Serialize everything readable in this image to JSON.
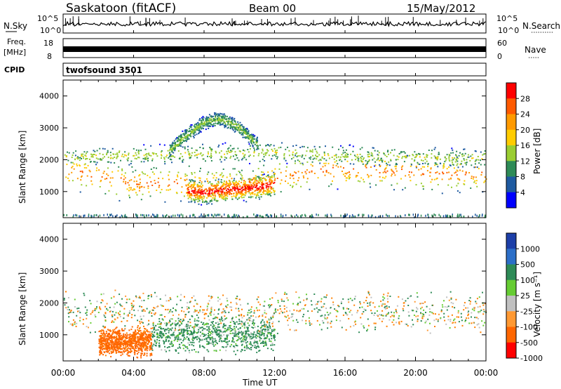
{
  "header": {
    "station": "Saskatoon (fitACF)",
    "beam": "Beam 00",
    "date": "15/May/2012"
  },
  "aux_panels": {
    "nsky_label": "N.Sky",
    "nsearch_label": "N.Search",
    "noise_ticks_left": [
      "10^5",
      "10^0"
    ],
    "noise_ticks_right": [
      "10^5",
      "10^0"
    ],
    "freq_label_1": "Freq.",
    "freq_label_2": "[MHz]",
    "freq_ticks": [
      "18",
      "8"
    ],
    "nave_label": "Nave",
    "nave_ticks": [
      "60",
      "0"
    ],
    "cpid_label": "CPID",
    "cpid_value": "twofsound 3501"
  },
  "colorbars": {
    "power": {
      "label": "Power [dB]",
      "ticks": [
        "28",
        "24",
        "20",
        "16",
        "12",
        "8",
        "4"
      ],
      "colors": [
        "#ff0000",
        "#ff5a00",
        "#ff9a00",
        "#ffcc00",
        "#9acd32",
        "#2e8b57",
        "#1e5aa0",
        "#0000ff"
      ]
    },
    "velocity": {
      "label": "Velocity [m s⁻¹]",
      "ticks": [
        "1000",
        "500",
        "100",
        "25",
        "-25",
        "-100",
        "-500",
        "-1000"
      ],
      "colors": [
        "#1d3fa8",
        "#2c6fc8",
        "#2e8b57",
        "#66cc33",
        "#c0c0c0",
        "#ff9933",
        "#ff6600",
        "#ff0000"
      ]
    }
  },
  "chart_data": [
    {
      "type": "heatmap",
      "title": "Power",
      "ylabel": "Slant Range [km]",
      "xlabel": "Time UT",
      "y_ticks": [
        "4000",
        "3000",
        "2000",
        "1000"
      ],
      "ylim": [
        180,
        4500
      ],
      "xlim": [
        0,
        24
      ],
      "x_tick_labels": [
        "00:00",
        "04:00",
        "08:00",
        "12:00",
        "16:00",
        "20:00",
        "00:00"
      ],
      "bands": [
        {
          "name": "main",
          "t": [
            0,
            2,
            4,
            6,
            8,
            10,
            12,
            14,
            16,
            18,
            20,
            22,
            24
          ],
          "r": [
            1700,
            1500,
            1250,
            1300,
            1200,
            1250,
            1400,
            1650,
            1700,
            1650,
            1600,
            1550,
            1600
          ],
          "width": 650,
          "peak": 22
        },
        {
          "name": "upper",
          "t": [
            0,
            4,
            8,
            12,
            16,
            20,
            24
          ],
          "r": [
            2100,
            2150,
            2200,
            2250,
            2150,
            2100,
            2050
          ],
          "width": 350,
          "peak": 12
        },
        {
          "name": "storm",
          "t": [
            7,
            8,
            9,
            10,
            11,
            12
          ],
          "r": [
            1050,
            1000,
            1050,
            1100,
            1150,
            1250
          ],
          "width": 400,
          "peak": 28
        },
        {
          "name": "arc",
          "t": [
            6,
            7,
            8,
            9,
            10,
            11
          ],
          "r": [
            2300,
            2800,
            3200,
            3300,
            3000,
            2500
          ],
          "width": 250,
          "peak": 10
        }
      ]
    },
    {
      "type": "heatmap",
      "title": "Velocity",
      "ylabel": "Slant Range [km]",
      "xlabel": "Time UT",
      "y_ticks": [
        "4000",
        "3000",
        "2000",
        "1000"
      ],
      "ylim": [
        180,
        4500
      ],
      "xlim": [
        0,
        24
      ],
      "x_tick_labels": [
        "00:00",
        "04:00",
        "08:00",
        "12:00",
        "16:00",
        "20:00",
        "00:00"
      ],
      "regions": [
        {
          "name": "ground-scatter",
          "t0": 0,
          "t1": 24,
          "r_center": 1750,
          "r_width": 700,
          "value": 0
        },
        {
          "name": "westward",
          "t0": 2,
          "t1": 5,
          "r_center": 800,
          "r_width": 500,
          "value": -400
        },
        {
          "name": "mixed",
          "t0": 5,
          "t1": 12,
          "r_center": 1000,
          "r_width": 600,
          "value": 150
        }
      ]
    }
  ]
}
